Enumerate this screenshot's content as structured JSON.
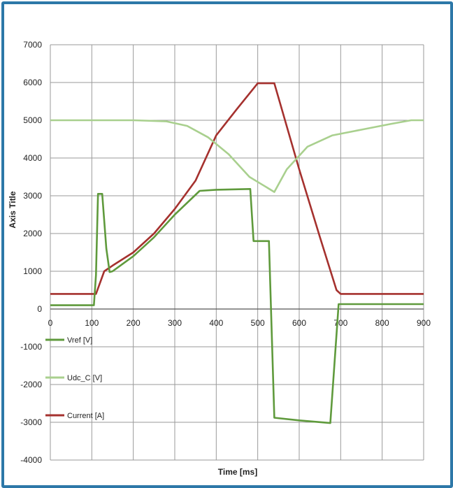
{
  "chart_data": {
    "type": "line",
    "xlabel": "Time [ms]",
    "ylabel": "Axis Title",
    "xlim": [
      0,
      900
    ],
    "ylim": [
      -4000,
      7000
    ],
    "xticks": [
      0,
      100,
      200,
      300,
      400,
      500,
      600,
      700,
      800,
      900
    ],
    "yticks": [
      7000,
      6000,
      5000,
      4000,
      3000,
      2000,
      1000,
      0,
      -1000,
      -2000,
      -3000,
      -4000
    ],
    "grid": true,
    "legend_position": "left, below the x axis",
    "series": [
      {
        "name": "Vref [V]",
        "color": "#5f9a3c",
        "points": [
          [
            0,
            100
          ],
          [
            105,
            100
          ],
          [
            110,
            900
          ],
          [
            115,
            3050
          ],
          [
            125,
            3050
          ],
          [
            135,
            1600
          ],
          [
            143,
            980
          ],
          [
            150,
            1000
          ],
          [
            200,
            1400
          ],
          [
            250,
            1900
          ],
          [
            300,
            2500
          ],
          [
            360,
            3130
          ],
          [
            400,
            3160
          ],
          [
            482,
            3180
          ],
          [
            490,
            1800
          ],
          [
            527,
            1800
          ],
          [
            540,
            -2880
          ],
          [
            600,
            -2950
          ],
          [
            675,
            -3020
          ],
          [
            695,
            130
          ],
          [
            750,
            130
          ],
          [
            900,
            130
          ]
        ]
      },
      {
        "name": "Udc_C [V]",
        "color": "#a9d08e",
        "points": [
          [
            0,
            5000
          ],
          [
            100,
            5000
          ],
          [
            200,
            5000
          ],
          [
            280,
            4970
          ],
          [
            330,
            4850
          ],
          [
            380,
            4550
          ],
          [
            430,
            4100
          ],
          [
            480,
            3500
          ],
          [
            510,
            3300
          ],
          [
            540,
            3100
          ],
          [
            570,
            3700
          ],
          [
            620,
            4300
          ],
          [
            680,
            4600
          ],
          [
            750,
            4750
          ],
          [
            820,
            4900
          ],
          [
            870,
            5000
          ],
          [
            900,
            5000
          ]
        ]
      },
      {
        "name": "Current [A]",
        "color": "#a5312e",
        "points": [
          [
            0,
            400
          ],
          [
            110,
            400
          ],
          [
            130,
            1000
          ],
          [
            150,
            1150
          ],
          [
            200,
            1500
          ],
          [
            250,
            2000
          ],
          [
            300,
            2650
          ],
          [
            350,
            3400
          ],
          [
            400,
            4600
          ],
          [
            450,
            5300
          ],
          [
            500,
            5980
          ],
          [
            540,
            5980
          ],
          [
            600,
            3700
          ],
          [
            650,
            1900
          ],
          [
            690,
            500
          ],
          [
            700,
            400
          ],
          [
            800,
            400
          ],
          [
            900,
            400
          ]
        ]
      }
    ]
  }
}
